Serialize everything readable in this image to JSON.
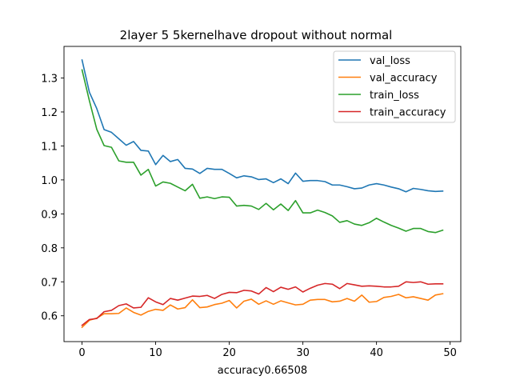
{
  "chart_data": {
    "type": "line",
    "title": "2layer  5 5kernelhave dropout without normal",
    "xlabel": "accuracy0.66508",
    "ylabel": "",
    "xlim": [
      -2.45,
      51.45
    ],
    "ylim": [
      0.524,
      1.393
    ],
    "xticks": [
      0,
      10,
      20,
      30,
      40,
      50
    ],
    "yticks": [
      0.6,
      0.7,
      0.8,
      0.9,
      1.0,
      1.1,
      1.2,
      1.3
    ],
    "ytick_labels": [
      "0.6",
      "0.7",
      "0.8",
      "0.9",
      "1.0",
      "1.1",
      "1.2",
      "1.3"
    ],
    "legend_position": "upper right",
    "x": [
      0,
      1,
      2,
      3,
      4,
      5,
      6,
      7,
      8,
      9,
      10,
      11,
      12,
      13,
      14,
      15,
      16,
      17,
      18,
      19,
      20,
      21,
      22,
      23,
      24,
      25,
      26,
      27,
      28,
      29,
      30,
      31,
      32,
      33,
      34,
      35,
      36,
      37,
      38,
      39,
      40,
      41,
      42,
      43,
      44,
      45,
      46,
      47,
      48,
      49
    ],
    "series": [
      {
        "name": "val_loss",
        "color": "#1f77b4",
        "values": [
          1.353,
          1.258,
          1.21,
          1.148,
          1.14,
          1.121,
          1.102,
          1.113,
          1.087,
          1.085,
          1.045,
          1.072,
          1.054,
          1.06,
          1.034,
          1.032,
          1.019,
          1.034,
          1.031,
          1.031,
          1.019,
          1.006,
          1.012,
          1.009,
          1.001,
          1.003,
          0.992,
          1.003,
          0.989,
          1.02,
          0.996,
          0.998,
          0.998,
          0.995,
          0.985,
          0.985,
          0.98,
          0.974,
          0.976,
          0.985,
          0.989,
          0.985,
          0.979,
          0.974,
          0.965,
          0.975,
          0.972,
          0.968,
          0.966,
          0.967
        ]
      },
      {
        "name": "val_accuracy",
        "color": "#ff7f0e",
        "values": [
          0.566,
          0.587,
          0.593,
          0.606,
          0.606,
          0.607,
          0.623,
          0.61,
          0.602,
          0.613,
          0.619,
          0.616,
          0.632,
          0.62,
          0.624,
          0.647,
          0.624,
          0.626,
          0.633,
          0.637,
          0.645,
          0.623,
          0.643,
          0.649,
          0.634,
          0.644,
          0.634,
          0.644,
          0.638,
          0.632,
          0.634,
          0.646,
          0.648,
          0.648,
          0.641,
          0.643,
          0.651,
          0.643,
          0.661,
          0.64,
          0.642,
          0.654,
          0.657,
          0.663,
          0.653,
          0.656,
          0.651,
          0.646,
          0.661,
          0.665
        ]
      },
      {
        "name": "train_loss",
        "color": "#2ca02c",
        "values": [
          1.324,
          1.233,
          1.149,
          1.101,
          1.096,
          1.056,
          1.052,
          1.052,
          1.014,
          1.031,
          0.982,
          0.994,
          0.99,
          0.979,
          0.968,
          0.987,
          0.946,
          0.95,
          0.945,
          0.95,
          0.949,
          0.923,
          0.925,
          0.923,
          0.913,
          0.931,
          0.912,
          0.929,
          0.91,
          0.939,
          0.903,
          0.903,
          0.911,
          0.904,
          0.894,
          0.875,
          0.88,
          0.87,
          0.866,
          0.874,
          0.887,
          0.876,
          0.866,
          0.858,
          0.849,
          0.857,
          0.857,
          0.848,
          0.845,
          0.852
        ]
      },
      {
        "name": "train_accuracy",
        "color": "#d62728",
        "values": [
          0.572,
          0.589,
          0.592,
          0.612,
          0.616,
          0.63,
          0.635,
          0.623,
          0.625,
          0.653,
          0.641,
          0.633,
          0.651,
          0.646,
          0.652,
          0.658,
          0.657,
          0.66,
          0.651,
          0.663,
          0.669,
          0.668,
          0.675,
          0.673,
          0.664,
          0.683,
          0.671,
          0.684,
          0.678,
          0.685,
          0.67,
          0.681,
          0.69,
          0.695,
          0.693,
          0.68,
          0.695,
          0.691,
          0.687,
          0.688,
          0.687,
          0.685,
          0.685,
          0.687,
          0.7,
          0.698,
          0.7,
          0.693,
          0.694,
          0.694
        ]
      }
    ]
  }
}
